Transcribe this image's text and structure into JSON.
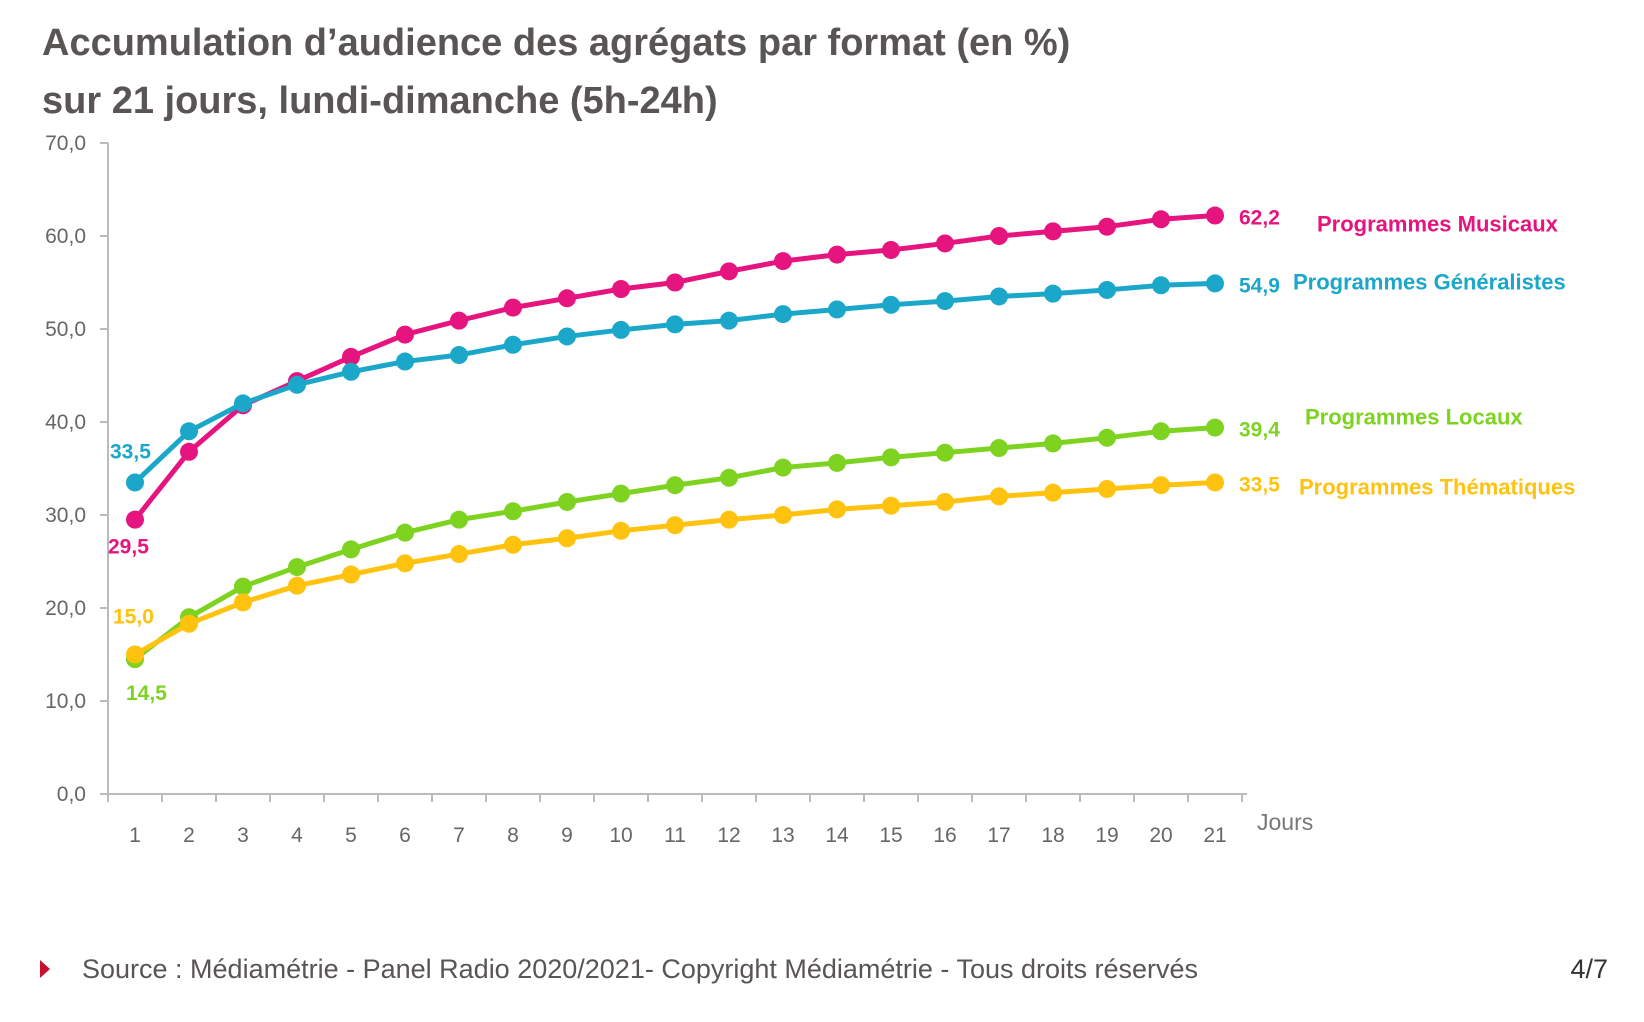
{
  "header": {
    "title_line1": "Accumulation d’audience des agrégats par format (en %)",
    "title_line2": "sur 21 jours, lundi-dimanche (5h-24h)"
  },
  "footer": {
    "source": "Source : Médiamétrie - Panel Radio 2020/2021- Copyright Médiamétrie - Tous droits réservés",
    "page": "4/7"
  },
  "chart_data": {
    "type": "line",
    "title": "Accumulation d’audience des agrégats par format (en %) sur 21 jours, lundi-dimanche (5h-24h)",
    "xlabel": "Jours",
    "ylabel": "",
    "x": [
      1,
      2,
      3,
      4,
      5,
      6,
      7,
      8,
      9,
      10,
      11,
      12,
      13,
      14,
      15,
      16,
      17,
      18,
      19,
      20,
      21
    ],
    "ylim": [
      0,
      70
    ],
    "yticks": [
      "0,0",
      "10,0",
      "20,0",
      "30,0",
      "40,0",
      "50,0",
      "60,0",
      "70,0"
    ],
    "grid": false,
    "legend": "right, labels at line ends",
    "series": [
      {
        "name": "Programmes Musicaux",
        "color": "#e6147f",
        "values": [
          29.5,
          36.8,
          41.8,
          44.4,
          47.0,
          49.4,
          50.9,
          52.3,
          53.3,
          54.3,
          55.0,
          56.2,
          57.3,
          58.0,
          58.5,
          59.2,
          60.0,
          60.5,
          61.0,
          61.8,
          62.2
        ],
        "start_label": "29,5",
        "end_label": "62,2"
      },
      {
        "name": "Programmes Généralistes",
        "color": "#1ba7c9",
        "values": [
          33.5,
          39.0,
          42.0,
          44.0,
          45.4,
          46.5,
          47.2,
          48.3,
          49.2,
          49.9,
          50.5,
          50.9,
          51.6,
          52.1,
          52.6,
          53.0,
          53.5,
          53.8,
          54.2,
          54.7,
          54.9
        ],
        "start_label": "33,5",
        "end_label": "54,9"
      },
      {
        "name": "Programmes Locaux",
        "color": "#7ed321",
        "values": [
          14.5,
          19.0,
          22.3,
          24.4,
          26.3,
          28.1,
          29.5,
          30.4,
          31.4,
          32.3,
          33.2,
          34.0,
          35.1,
          35.6,
          36.2,
          36.7,
          37.2,
          37.7,
          38.3,
          39.0,
          39.4
        ],
        "start_label": "14,5",
        "end_label": "39,4"
      },
      {
        "name": "Programmes Thématiques",
        "color": "#ffc20e",
        "values": [
          15.0,
          18.3,
          20.6,
          22.4,
          23.6,
          24.8,
          25.8,
          26.8,
          27.5,
          28.3,
          28.9,
          29.5,
          30.0,
          30.6,
          31.0,
          31.4,
          32.0,
          32.4,
          32.8,
          33.2,
          33.5
        ],
        "start_label": "15,0",
        "end_label": "33,5"
      }
    ]
  }
}
